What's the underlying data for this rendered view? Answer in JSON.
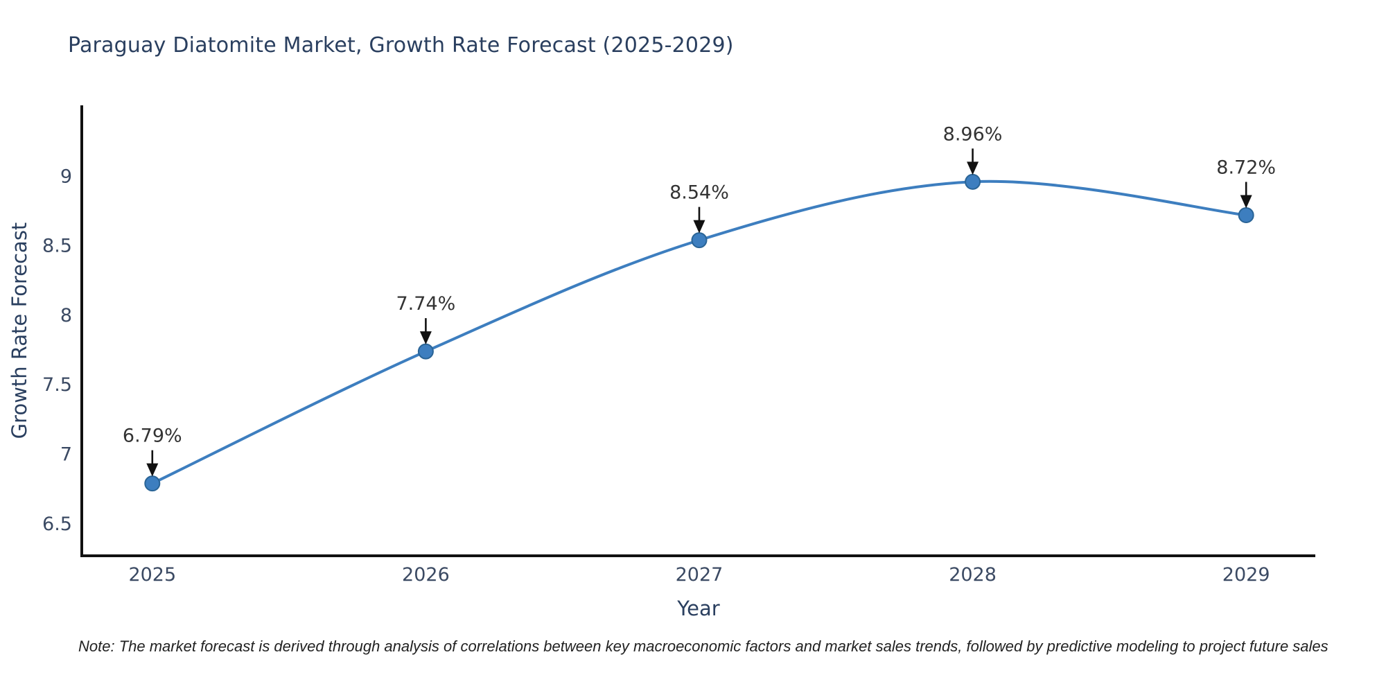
{
  "chart_data": {
    "type": "line",
    "title": "Paraguay Diatomite Market, Growth Rate Forecast (2025-2029)",
    "xlabel": "Year",
    "ylabel": "Growth Rate Forecast",
    "x": [
      2025,
      2026,
      2027,
      2028,
      2029
    ],
    "values": [
      6.79,
      7.74,
      8.54,
      8.96,
      8.72
    ],
    "point_labels": [
      "6.79%",
      "7.74%",
      "8.54%",
      "8.96%",
      "8.72%"
    ],
    "xtick_labels": [
      "2025",
      "2026",
      "2027",
      "2028",
      "2029"
    ],
    "yticks": [
      6.5,
      7,
      7.5,
      8,
      8.5,
      9
    ],
    "ytick_labels": [
      "6.5",
      "7",
      "7.5",
      "8",
      "8.5",
      "9"
    ],
    "xlim": [
      2024.742,
      2029.253
    ],
    "ylim": [
      6.27,
      9.51
    ],
    "grid": false,
    "legend": "none",
    "line_color": "#3d7ebf",
    "marker_color": "#3d7ebf",
    "marker_edge_color": "#2a6496",
    "axis_color": "#111111",
    "arrow_color": "#111111",
    "title_color": "#2a3f5f",
    "note": "Note: The market forecast is derived through analysis of correlations between key macroeconomic factors and market sales trends, followed by predictive modeling to project future sales"
  }
}
